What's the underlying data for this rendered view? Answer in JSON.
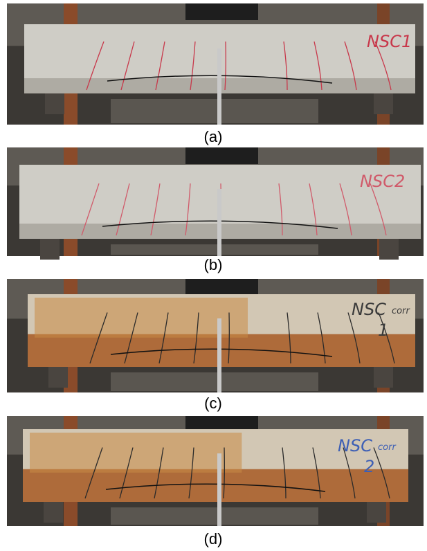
{
  "panels": [
    {
      "caption": "(a)",
      "beam_label": "NSC1"
    },
    {
      "caption": "(b)",
      "beam_label": "NSC2"
    },
    {
      "caption": "(c)",
      "beam_label": "NSC",
      "beam_label_sub": "corr",
      "beam_label_num": "1"
    },
    {
      "caption": "(d)",
      "beam_label": "NSC",
      "beam_label_sub": "corr",
      "beam_label_num": "2"
    }
  ]
}
